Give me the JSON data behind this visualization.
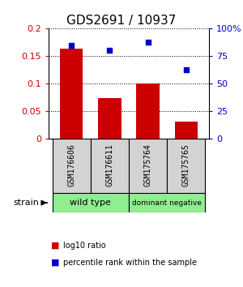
{
  "title": "GDS2691 / 10937",
  "categories": [
    "GSM176606",
    "GSM176611",
    "GSM175764",
    "GSM175765"
  ],
  "bar_values": [
    0.163,
    0.073,
    0.1,
    0.03
  ],
  "scatter_values": [
    0.85,
    0.8,
    0.875,
    0.625
  ],
  "bar_color": "#cc0000",
  "scatter_color": "#0000cc",
  "ylim_left": [
    0,
    0.2
  ],
  "ylim_right": [
    0,
    1.0
  ],
  "yticks_left": [
    0,
    0.05,
    0.1,
    0.15,
    0.2
  ],
  "ytick_labels_left": [
    "0",
    "0.05",
    "0.1",
    "0.15",
    "0.2"
  ],
  "yticks_right": [
    0,
    0.25,
    0.5,
    0.75,
    1.0
  ],
  "ytick_labels_right": [
    "0",
    "25",
    "50",
    "75",
    "100%"
  ],
  "bar_color_hex": "#cc0000",
  "scatter_color_hex": "#0000cc",
  "wt_color": "#90ee90",
  "dn_color": "#90ee90",
  "gray_color": "#d3d3d3",
  "bar_width": 0.6,
  "background_color": "#ffffff",
  "title_fontsize": 11,
  "tick_fontsize": 8,
  "cat_fontsize": 7,
  "legend_fontsize": 7,
  "group_fontsize": 8
}
